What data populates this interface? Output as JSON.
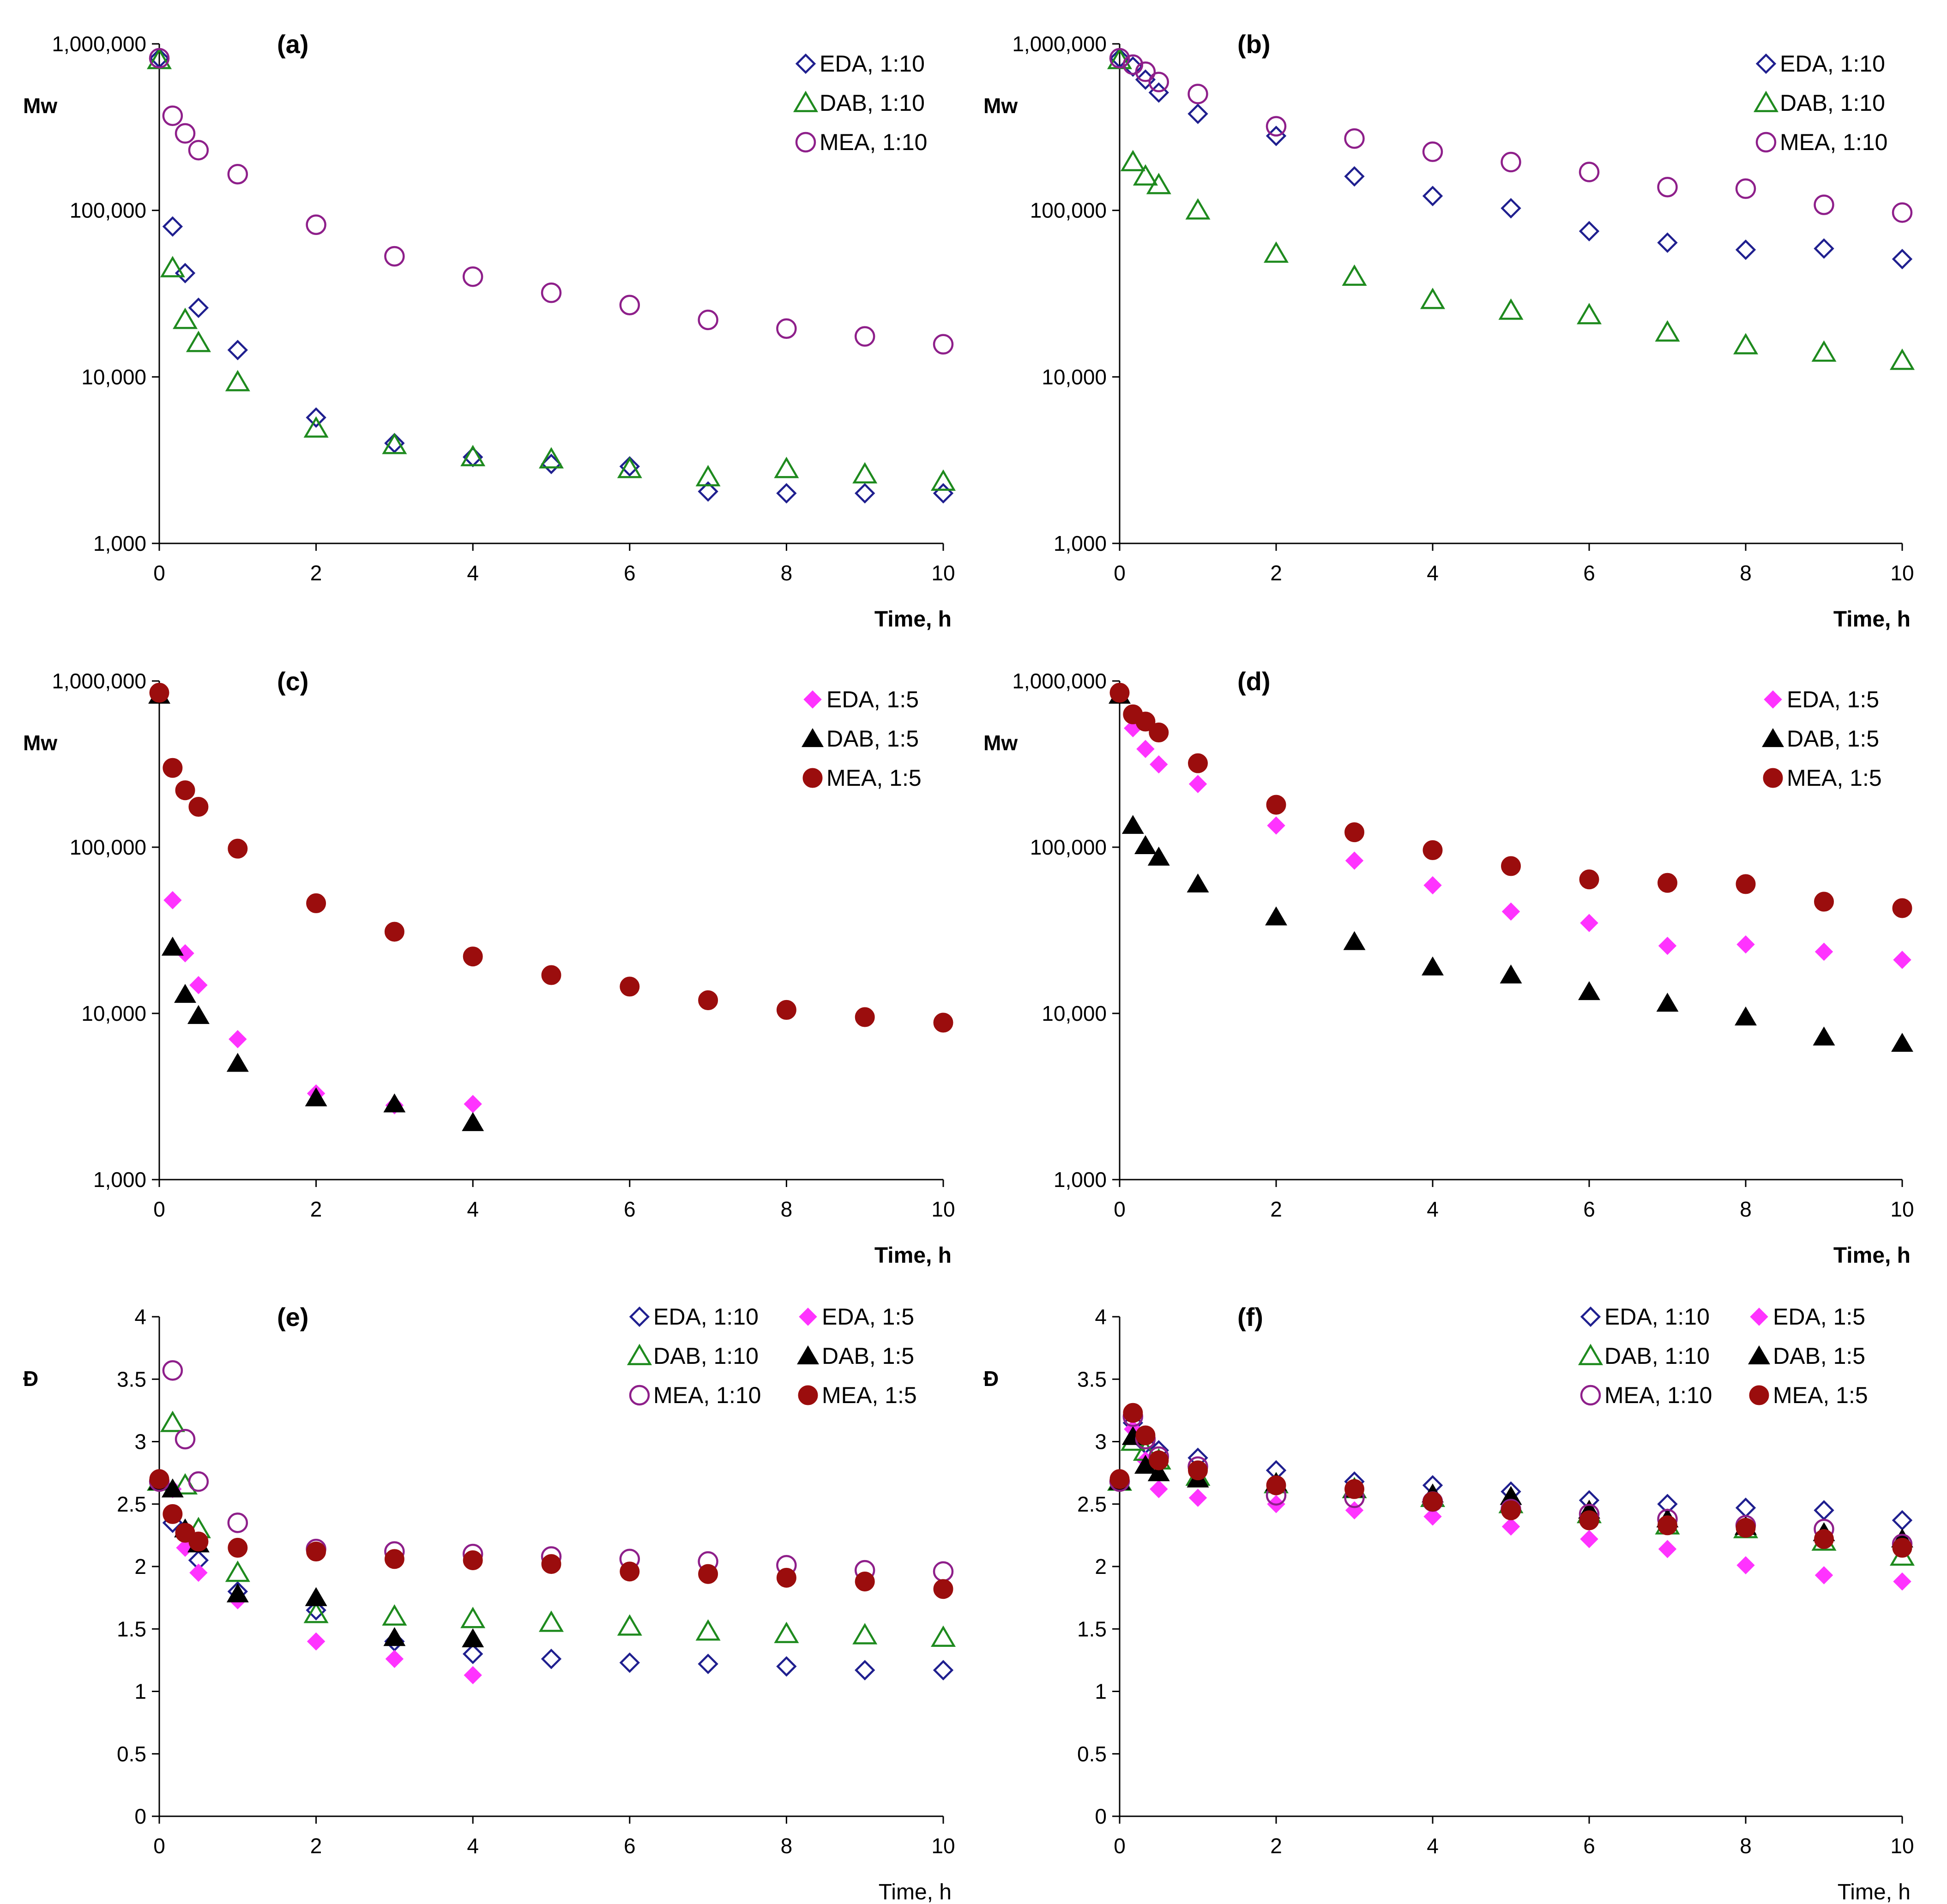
{
  "figure": "Mw and dispersity versus time, six panels",
  "colors": {
    "EDA_open": "#1f1f8f",
    "DAB_open": "#1e8a1e",
    "MEA_open": "#8e1f8a",
    "EDA_filled": "#ff33ff",
    "DAB_filled": "#000000",
    "MEA_filled": "#9b0d0d"
  },
  "chart_data": [
    {
      "panel": "(a)",
      "type": "scatter",
      "yscale": "log",
      "ylabel": "Mw",
      "xlabel": "Time, h",
      "xlim": [
        0,
        10
      ],
      "ylim": [
        1000,
        1000000
      ],
      "xticks": [
        "0",
        "2",
        "4",
        "6",
        "8",
        "10"
      ],
      "yticks": [
        "1,000",
        "10,000",
        "100,000",
        "1,000,000"
      ],
      "legend": "top-right",
      "series": [
        {
          "name": "EDA, 1:10",
          "marker": "diamond-open",
          "color": "#1f1f8f",
          "x": [
            0,
            0.17,
            0.33,
            0.5,
            1,
            2,
            3,
            4,
            5,
            6,
            7,
            8,
            9,
            10
          ],
          "y": [
            820000,
            80000,
            42000,
            26000,
            14500,
            5700,
            4000,
            3300,
            3000,
            2900,
            2050,
            2000,
            2000,
            2000
          ]
        },
        {
          "name": "DAB, 1:10",
          "marker": "triangle-open",
          "color": "#1e8a1e",
          "x": [
            0,
            0.17,
            0.33,
            0.5,
            1,
            2,
            3,
            4,
            5,
            6,
            7,
            8,
            9,
            10
          ],
          "y": [
            800000,
            45000,
            22000,
            16000,
            9300,
            4900,
            3900,
            3300,
            3200,
            2800,
            2500,
            2800,
            2600,
            2350
          ]
        },
        {
          "name": "MEA, 1:10",
          "marker": "circle-open",
          "color": "#8e1f8a",
          "x": [
            0,
            0.17,
            0.33,
            0.5,
            1,
            2,
            3,
            4,
            5,
            6,
            7,
            8,
            9,
            10
          ],
          "y": [
            820000,
            370000,
            290000,
            230000,
            165000,
            82000,
            53000,
            40000,
            32000,
            27000,
            22000,
            19500,
            17500,
            15700
          ]
        }
      ]
    },
    {
      "panel": "(b)",
      "type": "scatter",
      "yscale": "log",
      "ylabel": "Mw",
      "xlabel": "Time, h",
      "xlim": [
        0,
        10
      ],
      "ylim": [
        1000,
        1000000
      ],
      "xticks": [
        "0",
        "2",
        "4",
        "6",
        "8",
        "10"
      ],
      "yticks": [
        "1,000",
        "10,000",
        "100,000",
        "1,000,000"
      ],
      "legend": "top-right",
      "series": [
        {
          "name": "EDA, 1:10",
          "marker": "diamond-open",
          "color": "#1f1f8f",
          "x": [
            0,
            0.17,
            0.33,
            0.5,
            1,
            2,
            3,
            4,
            5,
            6,
            7,
            8,
            9,
            10
          ],
          "y": [
            820000,
            730000,
            610000,
            510000,
            380000,
            280000,
            160000,
            122000,
            103000,
            75000,
            64000,
            58000,
            59000,
            51000
          ]
        },
        {
          "name": "DAB, 1:10",
          "marker": "triangle-open",
          "color": "#1e8a1e",
          "x": [
            0,
            0.17,
            0.33,
            0.5,
            1,
            2,
            3,
            4,
            5,
            6,
            7,
            8,
            9,
            10
          ],
          "y": [
            800000,
            195000,
            160000,
            142000,
            100000,
            55000,
            40000,
            29000,
            25000,
            23500,
            18500,
            15500,
            14000,
            12500
          ]
        },
        {
          "name": "MEA, 1:10",
          "marker": "circle-open",
          "color": "#8e1f8a",
          "x": [
            0,
            0.17,
            0.33,
            0.5,
            1,
            2,
            3,
            4,
            5,
            6,
            7,
            8,
            9,
            10
          ],
          "y": [
            820000,
            750000,
            680000,
            590000,
            500000,
            320000,
            270000,
            225000,
            195000,
            170000,
            138000,
            135000,
            108000,
            97000
          ]
        }
      ]
    },
    {
      "panel": "(c)",
      "type": "scatter",
      "yscale": "log",
      "ylabel": "Mw",
      "xlabel": "Time, h",
      "xlim": [
        0,
        10
      ],
      "ylim": [
        1000,
        1000000
      ],
      "xticks": [
        "0",
        "2",
        "4",
        "6",
        "8",
        "10"
      ],
      "yticks": [
        "1,000",
        "10,000",
        "100,000",
        "1,000,000"
      ],
      "legend": "top-right",
      "series": [
        {
          "name": "EDA, 1:5",
          "marker": "diamond-filled",
          "color": "#ff33ff",
          "x": [
            0.17,
            0.33,
            0.5,
            1,
            2,
            3,
            4
          ],
          "y": [
            48000,
            23000,
            14800,
            7000,
            3300,
            2800,
            2850
          ]
        },
        {
          "name": "DAB, 1:5",
          "marker": "triangle-filled",
          "color": "#000000",
          "x": [
            0,
            0.17,
            0.33,
            0.5,
            1,
            2,
            3,
            4
          ],
          "y": [
            820000,
            25000,
            13000,
            9700,
            5000,
            3100,
            2850,
            2200
          ]
        },
        {
          "name": "MEA, 1:5",
          "marker": "circle-filled",
          "color": "#9b0d0d",
          "x": [
            0,
            0.17,
            0.33,
            0.5,
            1,
            2,
            3,
            4,
            5,
            6,
            7,
            8,
            9,
            10
          ],
          "y": [
            850000,
            300000,
            220000,
            175000,
            98000,
            46000,
            31000,
            22000,
            17000,
            14500,
            12000,
            10500,
            9500,
            8800
          ]
        }
      ]
    },
    {
      "panel": "(d)",
      "type": "scatter",
      "yscale": "log",
      "ylabel": "Mw",
      "xlabel": "Time, h",
      "xlim": [
        0,
        10
      ],
      "ylim": [
        1000,
        1000000
      ],
      "xticks": [
        "0",
        "2",
        "4",
        "6",
        "8",
        "10"
      ],
      "yticks": [
        "1,000",
        "10,000",
        "100,000",
        "1,000,000"
      ],
      "legend": "top-right",
      "series": [
        {
          "name": "EDA, 1:5",
          "marker": "diamond-filled",
          "color": "#ff33ff",
          "x": [
            0.17,
            0.33,
            0.5,
            1,
            2,
            3,
            4,
            5,
            6,
            7,
            8,
            9,
            10
          ],
          "y": [
            520000,
            390000,
            315000,
            240000,
            135000,
            83000,
            59000,
            41000,
            35000,
            25500,
            26000,
            23500,
            21000
          ]
        },
        {
          "name": "DAB, 1:5",
          "marker": "triangle-filled",
          "color": "#000000",
          "x": [
            0,
            0.17,
            0.33,
            0.5,
            1,
            2,
            3,
            4,
            5,
            6,
            7,
            8,
            9,
            10
          ],
          "y": [
            820000,
            135000,
            102000,
            87000,
            60000,
            38000,
            27000,
            19000,
            17000,
            13500,
            11500,
            9500,
            7200,
            6600
          ]
        },
        {
          "name": "MEA, 1:5",
          "marker": "circle-filled",
          "color": "#9b0d0d",
          "x": [
            0,
            0.17,
            0.33,
            0.5,
            1,
            2,
            3,
            4,
            5,
            6,
            7,
            8,
            9,
            10
          ],
          "y": [
            850000,
            630000,
            570000,
            490000,
            320000,
            180000,
            123000,
            96000,
            77000,
            64000,
            61000,
            60000,
            47000,
            43000
          ]
        }
      ]
    },
    {
      "panel": "(e)",
      "type": "scatter",
      "yscale": "linear",
      "ylabel": "Đ",
      "xlabel": "Time, h",
      "xlim": [
        0,
        10
      ],
      "ylim": [
        0,
        4
      ],
      "xticks": [
        "0",
        "2",
        "4",
        "6",
        "8",
        "10"
      ],
      "yticks": [
        "0",
        "0.5",
        "1",
        "1.5",
        "2",
        "2.5",
        "3",
        "3.5",
        "4"
      ],
      "legend": "top-right",
      "series": [
        {
          "name": "EDA, 1:10",
          "marker": "diamond-open",
          "color": "#1f1f8f",
          "x": [
            0,
            0.17,
            0.33,
            0.5,
            1,
            2,
            3,
            4,
            5,
            6,
            7,
            8,
            9,
            10
          ],
          "y": [
            2.68,
            2.35,
            2.25,
            2.05,
            1.8,
            1.65,
            1.4,
            1.3,
            1.26,
            1.23,
            1.22,
            1.2,
            1.17,
            1.17
          ]
        },
        {
          "name": "EDA, 1:5",
          "marker": "diamond-filled",
          "color": "#ff33ff",
          "x": [
            0.17,
            0.33,
            0.5,
            1,
            2,
            3,
            4
          ],
          "y": [
            2.62,
            2.15,
            1.95,
            1.73,
            1.4,
            1.26,
            1.13
          ]
        },
        {
          "name": "DAB, 1:10",
          "marker": "triangle-open",
          "color": "#1e8a1e",
          "x": [
            0,
            0.17,
            0.33,
            0.5,
            1,
            2,
            3,
            4,
            5,
            6,
            7,
            8,
            9,
            10
          ],
          "y": [
            2.68,
            3.15,
            2.65,
            2.3,
            1.95,
            1.62,
            1.6,
            1.58,
            1.55,
            1.52,
            1.48,
            1.46,
            1.45,
            1.43
          ]
        },
        {
          "name": "DAB, 1:5",
          "marker": "triangle-filled",
          "color": "#000000",
          "x": [
            0,
            0.17,
            0.33,
            0.5,
            1,
            2,
            3,
            4
          ],
          "y": [
            2.68,
            2.62,
            2.3,
            2.18,
            1.78,
            1.75,
            1.43,
            1.42
          ]
        },
        {
          "name": "MEA, 1:10",
          "marker": "circle-open",
          "color": "#8e1f8a",
          "x": [
            0,
            0.17,
            0.33,
            0.5,
            1,
            2,
            3,
            4,
            5,
            6,
            7,
            8,
            9,
            10
          ],
          "y": [
            2.68,
            3.57,
            3.02,
            2.68,
            2.35,
            2.14,
            2.12,
            2.1,
            2.08,
            2.06,
            2.04,
            2.01,
            1.97,
            1.96
          ]
        },
        {
          "name": "MEA, 1:5",
          "marker": "circle-filled",
          "color": "#9b0d0d",
          "x": [
            0,
            0.17,
            0.33,
            0.5,
            1,
            2,
            3,
            4,
            5,
            6,
            7,
            8,
            9,
            10
          ],
          "y": [
            2.7,
            2.42,
            2.27,
            2.2,
            2.15,
            2.12,
            2.06,
            2.05,
            2.02,
            1.96,
            1.94,
            1.91,
            1.88,
            1.82
          ]
        }
      ]
    },
    {
      "panel": "(f)",
      "type": "scatter",
      "yscale": "linear",
      "ylabel": "Đ",
      "xlabel": "Time, h",
      "xlim": [
        0,
        10
      ],
      "ylim": [
        0,
        4
      ],
      "xticks": [
        "0",
        "2",
        "4",
        "6",
        "8",
        "10"
      ],
      "yticks": [
        "0",
        "0.5",
        "1",
        "1.5",
        "2",
        "2.5",
        "3",
        "3.5",
        "4"
      ],
      "legend": "top-right",
      "series": [
        {
          "name": "EDA, 1:10",
          "marker": "diamond-open",
          "color": "#1f1f8f",
          "x": [
            0,
            0.17,
            0.33,
            0.5,
            1,
            2,
            3,
            4,
            5,
            6,
            7,
            8,
            9,
            10
          ],
          "y": [
            2.68,
            3.15,
            2.98,
            2.93,
            2.87,
            2.77,
            2.68,
            2.65,
            2.6,
            2.53,
            2.5,
            2.47,
            2.45,
            2.37
          ]
        },
        {
          "name": "EDA, 1:5",
          "marker": "diamond-filled",
          "color": "#ff33ff",
          "x": [
            0.17,
            0.33,
            0.5,
            1,
            2,
            3,
            4,
            5,
            6,
            7,
            8,
            9,
            10
          ],
          "y": [
            3.1,
            2.85,
            2.62,
            2.55,
            2.5,
            2.45,
            2.4,
            2.32,
            2.22,
            2.14,
            2.01,
            1.93,
            1.88
          ]
        },
        {
          "name": "DAB, 1:10",
          "marker": "triangle-open",
          "color": "#1e8a1e",
          "x": [
            0,
            0.17,
            0.33,
            0.5,
            1,
            2,
            3,
            4,
            5,
            6,
            7,
            8,
            9,
            10
          ],
          "y": [
            2.68,
            3.0,
            2.92,
            2.85,
            2.72,
            2.66,
            2.62,
            2.55,
            2.5,
            2.42,
            2.33,
            2.3,
            2.2,
            2.08
          ]
        },
        {
          "name": "DAB, 1:5",
          "marker": "triangle-filled",
          "color": "#000000",
          "x": [
            0,
            0.17,
            0.33,
            0.5,
            1,
            2,
            3,
            4,
            5,
            6,
            7,
            8,
            9,
            10
          ],
          "y": [
            2.68,
            3.04,
            2.81,
            2.75,
            2.7,
            2.67,
            2.62,
            2.58,
            2.56,
            2.45,
            2.38,
            2.32,
            2.27,
            2.22
          ]
        },
        {
          "name": "MEA, 1:10",
          "marker": "circle-open",
          "color": "#8e1f8a",
          "x": [
            0,
            0.17,
            0.33,
            0.5,
            1,
            2,
            3,
            4,
            5,
            6,
            7,
            8,
            9,
            10
          ],
          "y": [
            2.68,
            3.2,
            3.02,
            2.88,
            2.8,
            2.57,
            2.55,
            2.52,
            2.46,
            2.42,
            2.38,
            2.33,
            2.3,
            2.18
          ]
        },
        {
          "name": "MEA, 1:5",
          "marker": "circle-filled",
          "color": "#9b0d0d",
          "x": [
            0,
            0.17,
            0.33,
            0.5,
            1,
            2,
            3,
            4,
            5,
            6,
            7,
            8,
            9,
            10
          ],
          "y": [
            2.7,
            3.23,
            3.05,
            2.85,
            2.77,
            2.65,
            2.62,
            2.52,
            2.45,
            2.37,
            2.33,
            2.31,
            2.22,
            2.15
          ]
        }
      ]
    }
  ]
}
